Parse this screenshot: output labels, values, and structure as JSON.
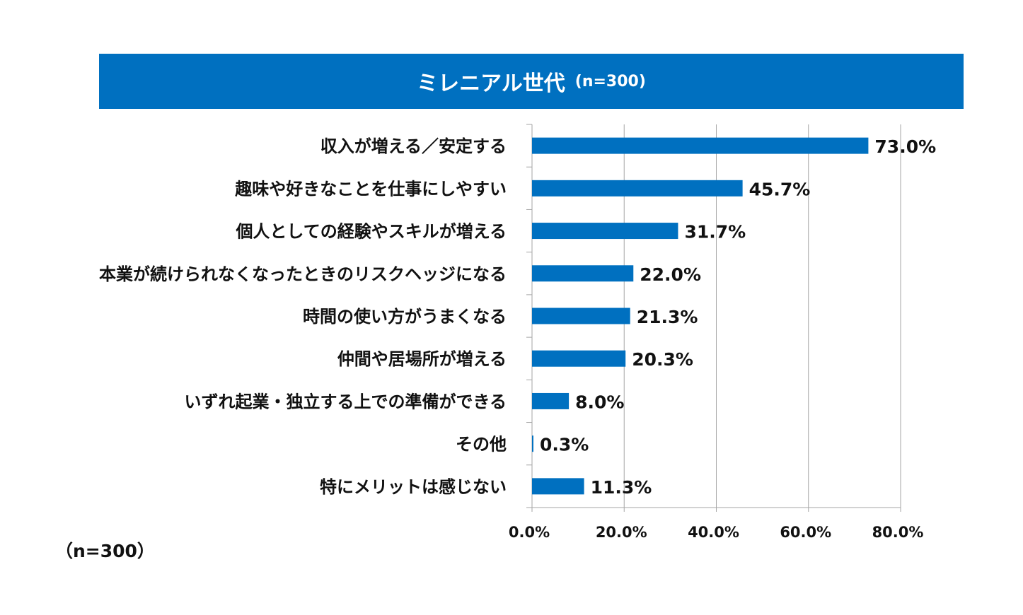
{
  "chart_data": {
    "type": "bar",
    "orientation": "horizontal",
    "title": "ミレニアル世代",
    "subtitle": "(n=300)",
    "categories": [
      "収入が増える／安定する",
      "趣味や好きなことを仕事にしやすい",
      "個人としての経験やスキルが増える",
      "本業が続けられなくなったときのリスクヘッジになる",
      "時間の使い方がうまくなる",
      "仲間や居場所が増える",
      "いずれ起業・独立する上での準備ができる",
      "その他",
      "特にメリットは感じない"
    ],
    "values": [
      73.0,
      45.7,
      31.7,
      22.0,
      21.3,
      20.3,
      8.0,
      0.3,
      11.3
    ],
    "value_labels": [
      "73.0%",
      "45.7%",
      "31.7%",
      "22.0%",
      "21.3%",
      "20.3%",
      "8.0%",
      "0.3%",
      "11.3%"
    ],
    "xlim": [
      0,
      80
    ],
    "xticks": [
      0,
      20,
      40,
      60,
      80
    ],
    "xtick_labels": [
      "0.0%",
      "20.0%",
      "40.0%",
      "60.0%",
      "80.0%"
    ],
    "grid": true,
    "bar_color": "#0070c0"
  },
  "footnote": "（n=300）",
  "colors": {
    "banner_bg": "#0070c0",
    "banner_text": "#ffffff",
    "grid": "#a6a6a6",
    "axis": "#a6a6a6"
  }
}
